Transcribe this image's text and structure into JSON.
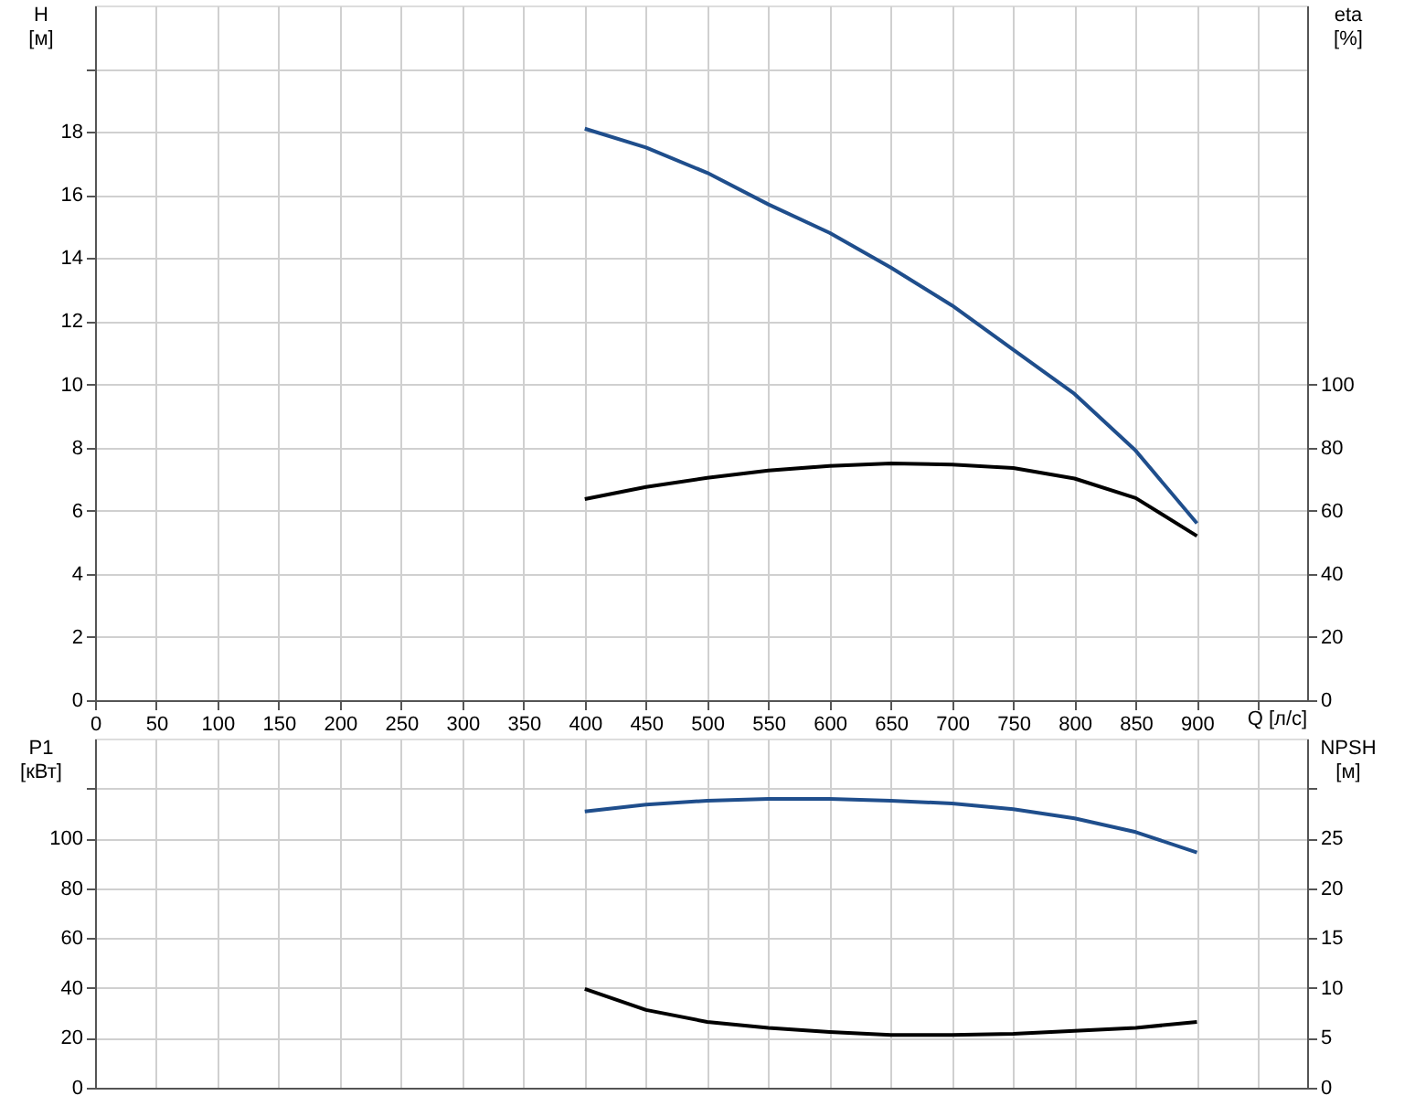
{
  "chart_data": [
    {
      "type": "line",
      "xlabel": "Q [л/с]",
      "ylabel": "H\n[м]",
      "y2label": "eta\n[%]",
      "xlim": [
        0,
        990
      ],
      "xticks": [
        0,
        50,
        100,
        150,
        200,
        250,
        300,
        350,
        400,
        450,
        500,
        550,
        600,
        650,
        700,
        750,
        800,
        850,
        900,
        {
          "value": 950,
          "label": null
        }
      ],
      "ylim": [
        0,
        22
      ],
      "yticks": [
        0,
        2,
        4,
        6,
        8,
        10,
        12,
        14,
        16,
        18,
        {
          "value": 20,
          "label": null
        }
      ],
      "y2lim": [
        0,
        220
      ],
      "y2ticks": [
        0,
        20,
        40,
        60,
        80,
        100
      ],
      "grid": true,
      "line_style": "solid",
      "marker": "none",
      "x": [
        400,
        450,
        500,
        550,
        600,
        650,
        700,
        750,
        800,
        850,
        900
      ],
      "series": [
        {
          "color": "#1f4e8c",
          "values": [
            18.1,
            17.5,
            16.7,
            15.7,
            14.8,
            13.7,
            12.5,
            11.1,
            9.7,
            7.9,
            5.6
          ]
        },
        {
          "color": "#000000",
          "axis": "y2",
          "values": [
            63.7,
            67.5,
            70.4,
            72.7,
            74.2,
            75,
            74.6,
            73.5,
            70.2,
            64,
            52
          ]
        }
      ]
    },
    {
      "type": "line",
      "ylabel": "P1\n[кВт]",
      "y2label": "NPSH\n[м]",
      "xlim": [
        0,
        990
      ],
      "xticks": [
        0,
        50,
        100,
        150,
        200,
        250,
        300,
        350,
        400,
        450,
        500,
        550,
        600,
        650,
        700,
        750,
        800,
        850,
        900,
        950
      ],
      "ylim": [
        0,
        140
      ],
      "yticks": [
        0,
        20,
        40,
        60,
        80,
        100,
        {
          "value": 120,
          "label": null
        }
      ],
      "y2lim": [
        0,
        35
      ],
      "y2ticks": [
        0,
        5,
        10,
        15,
        20,
        25,
        {
          "value": 30,
          "label": null
        }
      ],
      "grid": true,
      "tick_labels": "y",
      "line_style": "solid",
      "marker": "none",
      "x": [
        400,
        450,
        500,
        550,
        600,
        650,
        700,
        750,
        800,
        850,
        900
      ],
      "series": [
        {
          "color": "#1f4e8c",
          "values": [
            110.8,
            113.5,
            115.1,
            115.8,
            115.8,
            115.1,
            114,
            111.7,
            108,
            102.5,
            94.3
          ]
        },
        {
          "color": "#000000",
          "axis": "y2",
          "values": [
            9.9,
            7.8,
            6.6,
            6.0,
            5.6,
            5.3,
            5.3,
            5.4,
            5.7,
            6.0,
            6.6
          ]
        }
      ]
    }
  ]
}
